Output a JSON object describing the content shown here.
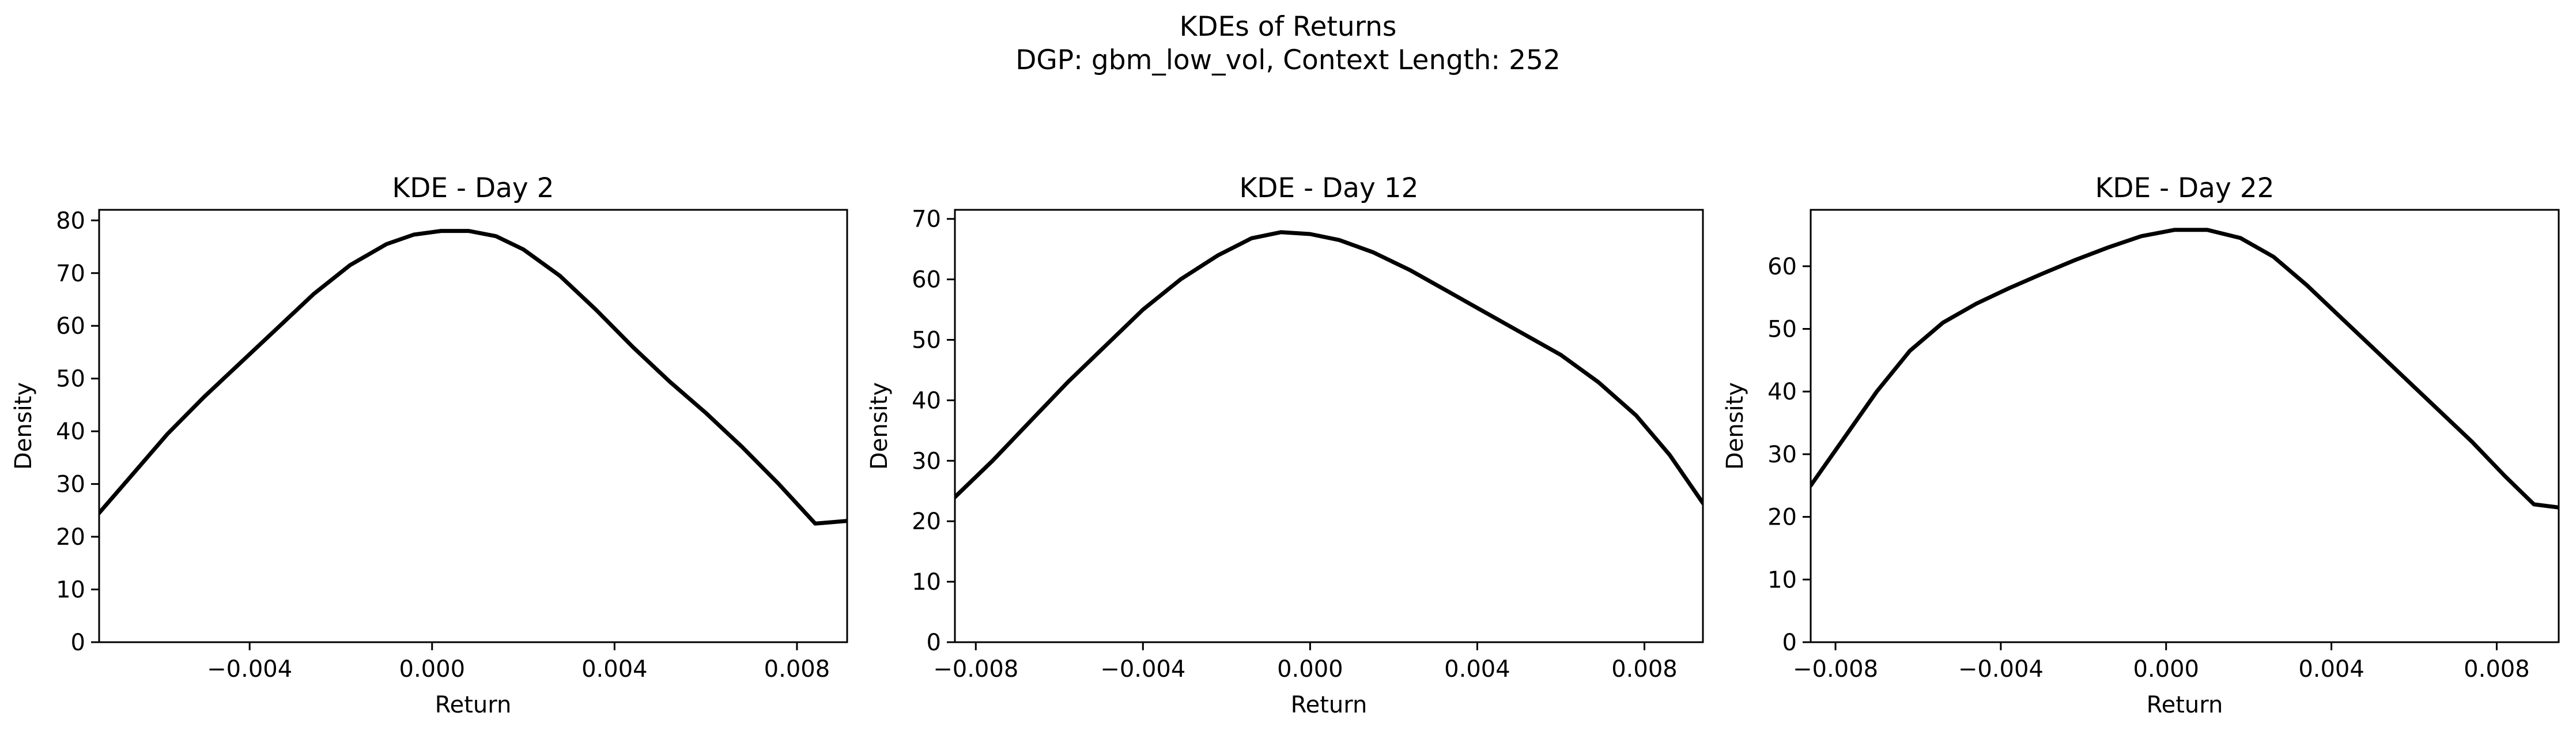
{
  "figure": {
    "title_line1": "KDEs of Returns",
    "title_line2": "DGP: gbm_low_vol, Context Length: 252"
  },
  "colors": {
    "line": "#000000",
    "axes": "#000000",
    "background": "#ffffff"
  },
  "chart_data": [
    {
      "type": "line",
      "title": "KDE - Day 2",
      "xlabel": "Return",
      "ylabel": "Density",
      "xlim": [
        -0.0073,
        0.0091
      ],
      "ylim": [
        0,
        82
      ],
      "xticks": [
        -0.004,
        0.0,
        0.004,
        0.008
      ],
      "xtick_labels": [
        "−0.004",
        "0.000",
        "0.004",
        "0.008"
      ],
      "yticks": [
        0,
        10,
        20,
        30,
        40,
        50,
        60,
        70,
        80
      ],
      "ytick_labels": [
        "0",
        "10",
        "20",
        "30",
        "40",
        "50",
        "60",
        "70",
        "80"
      ],
      "grid": false,
      "series": [
        {
          "x": [
            -0.0073,
            -0.0066,
            -0.0058,
            -0.005,
            -0.0042,
            -0.0034,
            -0.0026,
            -0.0018,
            -0.001,
            -0.0004,
            0.0002,
            0.0008,
            0.0014,
            0.002,
            0.0028,
            0.0036,
            0.0044,
            0.0052,
            0.006,
            0.0068,
            0.0076,
            0.0084,
            0.0091
          ],
          "y": [
            24.5,
            31.5,
            39.5,
            46.5,
            53.0,
            59.5,
            66.0,
            71.5,
            75.5,
            77.3,
            78.0,
            78.0,
            77.0,
            74.5,
            69.5,
            63.0,
            56.0,
            49.5,
            43.5,
            37.0,
            30.0,
            22.5,
            23.0
          ]
        }
      ]
    },
    {
      "type": "line",
      "title": "KDE - Day 12",
      "xlabel": "Return",
      "ylabel": "Density",
      "xlim": [
        -0.0085,
        0.0094
      ],
      "ylim": [
        0,
        71.5
      ],
      "xticks": [
        -0.008,
        -0.004,
        0.0,
        0.004,
        0.008
      ],
      "xtick_labels": [
        "−0.008",
        "−0.004",
        "0.000",
        "0.004",
        "0.008"
      ],
      "yticks": [
        0,
        10,
        20,
        30,
        40,
        50,
        60,
        70
      ],
      "ytick_labels": [
        "0",
        "10",
        "20",
        "30",
        "40",
        "50",
        "60",
        "70"
      ],
      "grid": false,
      "series": [
        {
          "x": [
            -0.0085,
            -0.0076,
            -0.0067,
            -0.0058,
            -0.0049,
            -0.004,
            -0.0031,
            -0.0022,
            -0.0014,
            -0.0007,
            0.0,
            0.0007,
            0.0015,
            0.0024,
            0.0033,
            0.0042,
            0.0051,
            0.006,
            0.0069,
            0.0078,
            0.0086,
            0.0094
          ],
          "y": [
            24.0,
            30.0,
            36.5,
            43.0,
            49.0,
            55.0,
            60.0,
            64.0,
            66.8,
            67.8,
            67.5,
            66.5,
            64.5,
            61.5,
            58.0,
            54.5,
            51.0,
            47.5,
            43.0,
            37.5,
            31.0,
            23.0
          ]
        }
      ]
    },
    {
      "type": "line",
      "title": "KDE - Day 22",
      "xlabel": "Return",
      "ylabel": "Density",
      "xlim": [
        -0.0086,
        0.0095
      ],
      "ylim": [
        0,
        69
      ],
      "xticks": [
        -0.008,
        -0.004,
        0.0,
        0.004,
        0.008
      ],
      "xtick_labels": [
        "−0.008",
        "−0.004",
        "0.000",
        "0.004",
        "0.008"
      ],
      "yticks": [
        0,
        10,
        20,
        30,
        40,
        50,
        60
      ],
      "ytick_labels": [
        "0",
        "10",
        "20",
        "30",
        "40",
        "50",
        "60"
      ],
      "grid": false,
      "series": [
        {
          "x": [
            -0.0086,
            -0.0078,
            -0.007,
            -0.0062,
            -0.0054,
            -0.0046,
            -0.0038,
            -0.003,
            -0.0022,
            -0.0014,
            -0.0006,
            0.0002,
            0.001,
            0.0018,
            0.0026,
            0.0034,
            0.0042,
            0.005,
            0.0058,
            0.0066,
            0.0074,
            0.0082,
            0.0089,
            0.0095
          ],
          "y": [
            25.0,
            32.5,
            40.0,
            46.5,
            51.0,
            54.0,
            56.5,
            58.8,
            61.0,
            63.0,
            64.8,
            65.8,
            65.8,
            64.5,
            61.5,
            57.0,
            52.0,
            47.0,
            42.0,
            37.0,
            32.0,
            26.5,
            22.0,
            21.5
          ]
        }
      ]
    }
  ]
}
